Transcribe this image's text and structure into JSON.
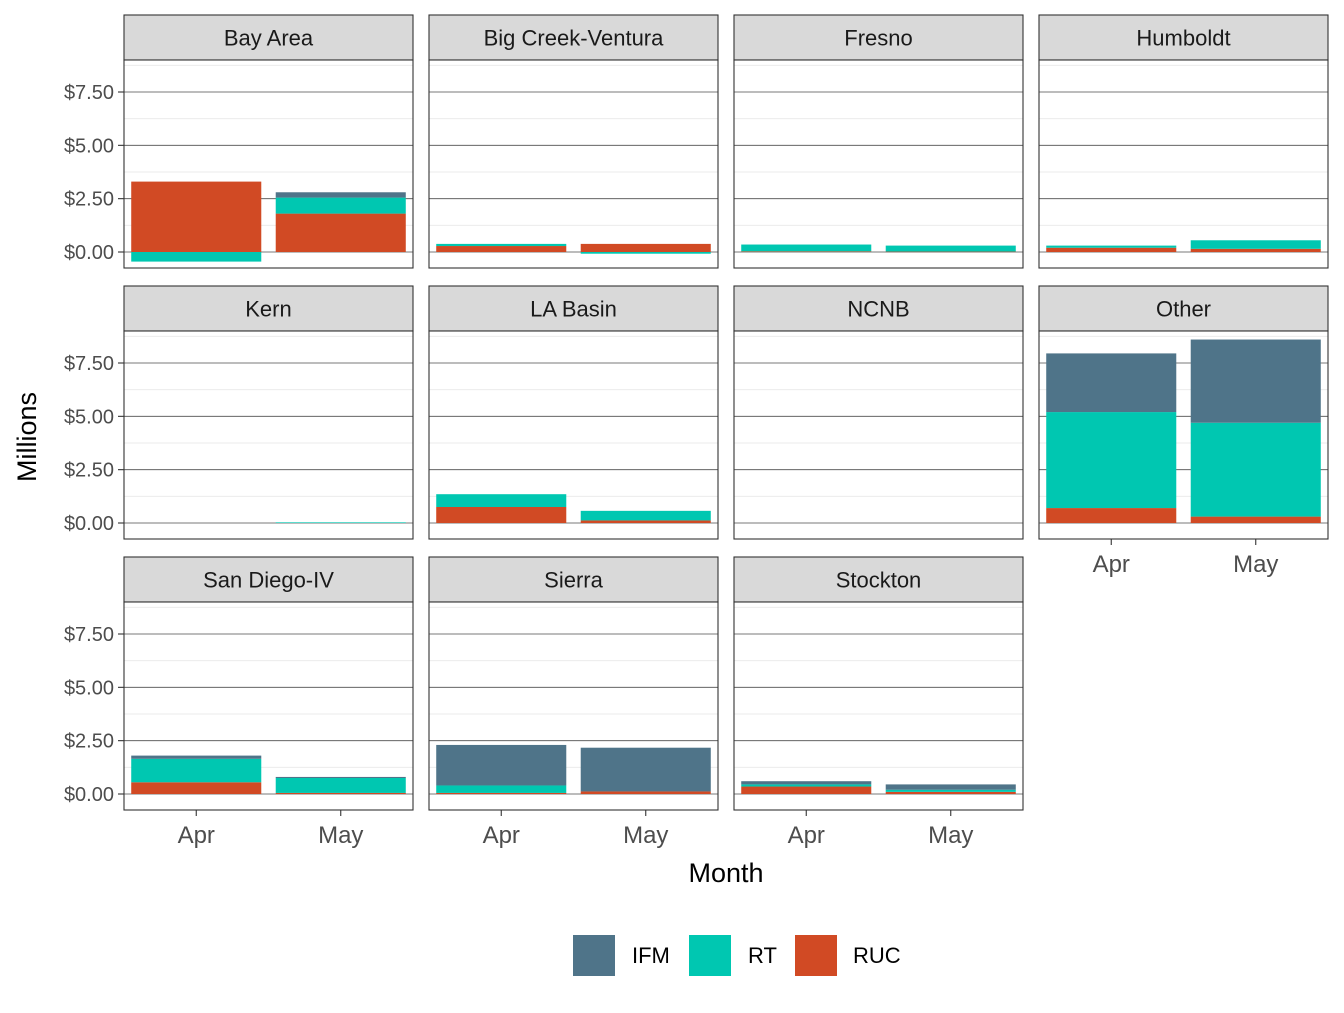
{
  "chart_data": {
    "type": "bar",
    "stacked": true,
    "faceted": true,
    "xlabel": "Month",
    "ylabel": "Millions",
    "ylim": [
      -0.75,
      9.0
    ],
    "yticks": [
      0,
      2.5,
      5.0,
      7.5
    ],
    "ytick_labels": [
      "$0.00",
      "$2.50",
      "$5.00",
      "$7.50"
    ],
    "categories": [
      "Apr",
      "May"
    ],
    "series_order": [
      "IFM",
      "RT",
      "RUC"
    ],
    "legend": {
      "position": "bottom",
      "items": [
        {
          "name": "IFM",
          "color": "#4f7489"
        },
        {
          "name": "RT",
          "color": "#00c7b1"
        },
        {
          "name": "RUC",
          "color": "#d14a24"
        }
      ]
    },
    "panels": [
      {
        "title": "Bay Area",
        "series": [
          {
            "name": "IFM",
            "values": [
              0.0,
              0.25
            ]
          },
          {
            "name": "RT",
            "values": [
              -0.45,
              0.75
            ]
          },
          {
            "name": "RUC",
            "values": [
              3.3,
              1.8
            ]
          }
        ]
      },
      {
        "title": "Big Creek-Ventura",
        "series": [
          {
            "name": "IFM",
            "values": [
              0.0,
              0.0
            ]
          },
          {
            "name": "RT",
            "values": [
              0.1,
              -0.08
            ]
          },
          {
            "name": "RUC",
            "values": [
              0.28,
              0.38
            ]
          }
        ]
      },
      {
        "title": "Fresno",
        "series": [
          {
            "name": "IFM",
            "values": [
              0.0,
              0.0
            ]
          },
          {
            "name": "RT",
            "values": [
              0.32,
              0.28
            ]
          },
          {
            "name": "RUC",
            "values": [
              0.03,
              0.02
            ]
          }
        ]
      },
      {
        "title": "Humboldt",
        "series": [
          {
            "name": "IFM",
            "values": [
              0.0,
              0.0
            ]
          },
          {
            "name": "RT",
            "values": [
              0.1,
              0.4
            ]
          },
          {
            "name": "RUC",
            "values": [
              0.2,
              0.15
            ]
          }
        ]
      },
      {
        "title": "Kern",
        "series": [
          {
            "name": "IFM",
            "values": [
              0.0,
              0.0
            ]
          },
          {
            "name": "RT",
            "values": [
              0.0,
              0.03
            ]
          },
          {
            "name": "RUC",
            "values": [
              0.0,
              0.0
            ]
          }
        ]
      },
      {
        "title": "LA Basin",
        "series": [
          {
            "name": "IFM",
            "values": [
              0.0,
              0.0
            ]
          },
          {
            "name": "RT",
            "values": [
              0.6,
              0.45
            ]
          },
          {
            "name": "RUC",
            "values": [
              0.75,
              0.12
            ]
          }
        ]
      },
      {
        "title": "NCNB",
        "series": [
          {
            "name": "IFM",
            "values": [
              0.0,
              0.0
            ]
          },
          {
            "name": "RT",
            "values": [
              0.0,
              0.0
            ]
          },
          {
            "name": "RUC",
            "values": [
              0.0,
              0.0
            ]
          }
        ]
      },
      {
        "title": "Other",
        "series": [
          {
            "name": "IFM",
            "values": [
              2.75,
              3.9
            ]
          },
          {
            "name": "RT",
            "values": [
              4.5,
              4.4
            ]
          },
          {
            "name": "RUC",
            "values": [
              0.7,
              0.3
            ]
          }
        ]
      },
      {
        "title": "San Diego-IV",
        "series": [
          {
            "name": "IFM",
            "values": [
              0.15,
              0.05
            ]
          },
          {
            "name": "RT",
            "values": [
              1.1,
              0.7
            ]
          },
          {
            "name": "RUC",
            "values": [
              0.55,
              0.05
            ]
          }
        ]
      },
      {
        "title": "Sierra",
        "series": [
          {
            "name": "IFM",
            "values": [
              1.9,
              2.05
            ]
          },
          {
            "name": "RT",
            "values": [
              0.35,
              0.0
            ]
          },
          {
            "name": "RUC",
            "values": [
              0.05,
              0.12
            ]
          }
        ]
      },
      {
        "title": "Stockton",
        "series": [
          {
            "name": "IFM",
            "values": [
              0.15,
              0.25
            ]
          },
          {
            "name": "RT",
            "values": [
              0.1,
              0.1
            ]
          },
          {
            "name": "RUC",
            "values": [
              0.35,
              0.1
            ]
          }
        ]
      }
    ]
  }
}
